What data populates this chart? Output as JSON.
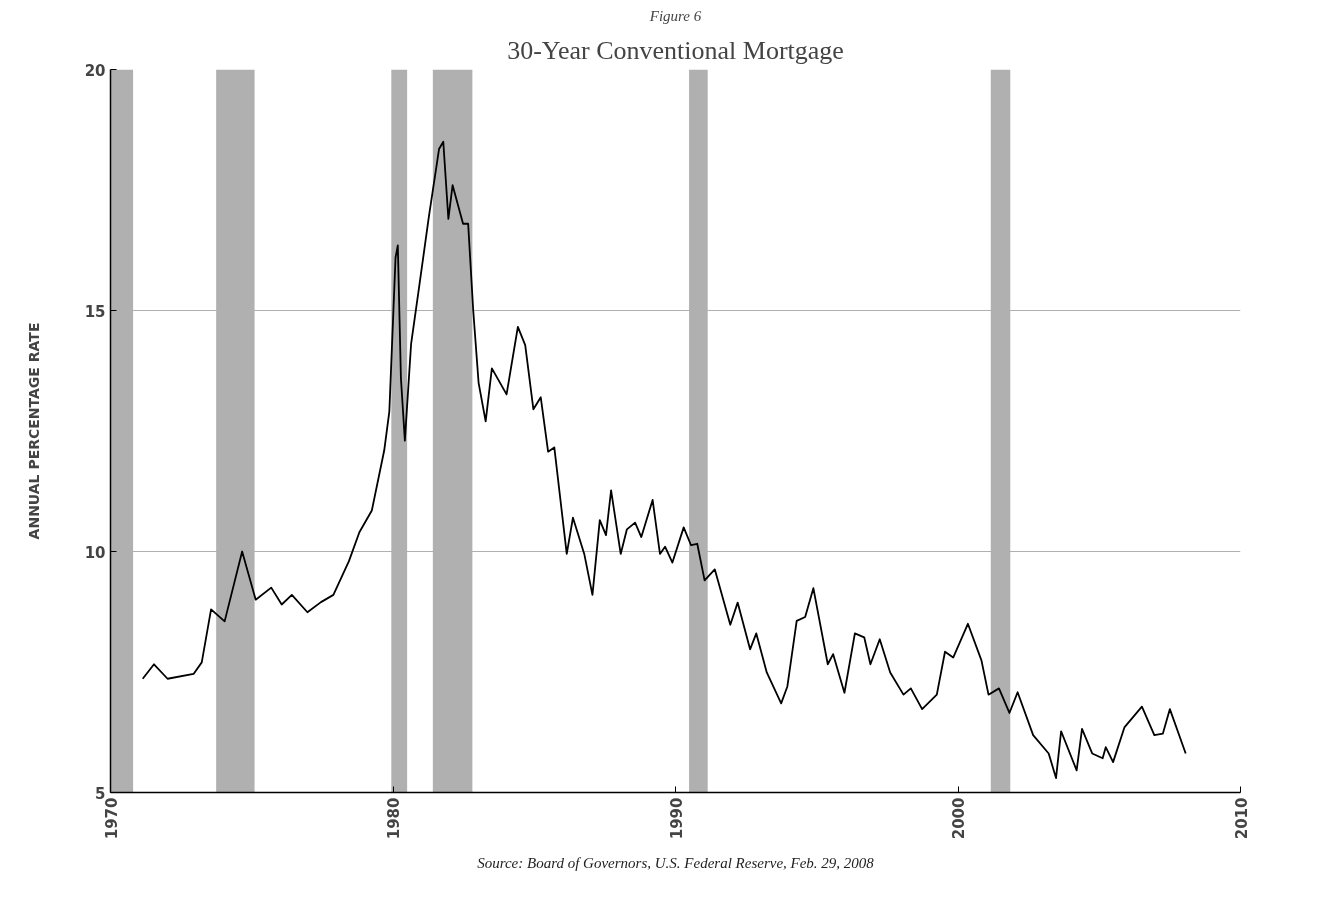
{
  "chart_data": {
    "type": "line",
    "subtitle": "Figure 6",
    "title": "30-Year Conventional Mortgage",
    "ylabel": "ANNUAL PERCENTAGE RATE",
    "annotations": [
      "Source: Board of Governors, U.S. Federal Reserve, Feb. 29, 2008"
    ],
    "xlim": [
      1970,
      2010
    ],
    "xticks": [
      1970,
      1980,
      1990,
      2000,
      2010
    ],
    "ylim": [
      5,
      20
    ],
    "yticks": [
      5,
      10,
      15,
      20
    ],
    "grid": "y",
    "marker": "none",
    "line_style": "solid",
    "bands": [
      {
        "axis": "x",
        "from": 1970,
        "to": 1970.8,
        "color": "#b0b0b0"
      },
      {
        "axis": "x",
        "from": 1973.74,
        "to": 1975.1,
        "color": "#b0b0b0"
      },
      {
        "axis": "x",
        "from": 1979.94,
        "to": 1980.5,
        "color": "#b0b0b0"
      },
      {
        "axis": "x",
        "from": 1981.41,
        "to": 1982.81,
        "color": "#b0b0b0"
      },
      {
        "axis": "x",
        "from": 1990.48,
        "to": 1991.14,
        "color": "#b0b0b0"
      },
      {
        "axis": "x",
        "from": 2001.16,
        "to": 2001.85,
        "color": "#b0b0b0"
      }
    ],
    "series": [
      {
        "color": "#000000",
        "x": [
          1971.14,
          1971.54,
          1972.02,
          1972.94,
          1973.23,
          1973.56,
          1974.04,
          1974.66,
          1975.14,
          1975.69,
          1976.06,
          1976.42,
          1976.97,
          1977.45,
          1977.89,
          1978.44,
          1978.81,
          1979.25,
          1979.69,
          1979.87,
          1980.09,
          1980.17,
          1980.28,
          1980.42,
          1980.64,
          1980.94,
          1981.27,
          1981.63,
          1981.78,
          1981.96,
          1982.11,
          1982.48,
          1982.66,
          1982.84,
          1983.03,
          1983.28,
          1983.5,
          1984.02,
          1984.42,
          1984.68,
          1984.97,
          1985.23,
          1985.49,
          1985.71,
          1986.15,
          1986.37,
          1986.77,
          1987.06,
          1987.32,
          1987.54,
          1987.72,
          1988.06,
          1988.28,
          1988.57,
          1988.79,
          1989.19,
          1989.45,
          1989.63,
          1989.89,
          1990.29,
          1990.55,
          1990.77,
          1991.03,
          1991.39,
          1991.94,
          1992.2,
          1992.64,
          1992.86,
          1993.23,
          1993.74,
          1993.96,
          1994.29,
          1994.59,
          1994.88,
          1995.39,
          1995.58,
          1995.98,
          1996.35,
          1996.68,
          1996.9,
          1997.23,
          1997.6,
          1998.07,
          1998.33,
          1998.73,
          1999.25,
          1999.54,
          1999.83,
          2000.35,
          2000.83,
          2001.08,
          2001.45,
          2001.82,
          2002.11,
          2002.66,
          2003.21,
          2003.47,
          2003.65,
          2004.2,
          2004.39,
          2004.75,
          2005.12,
          2005.23,
          2005.49,
          2005.89,
          2006.51,
          2006.95,
          2007.25,
          2007.5,
          2008.06
        ],
        "values": [
          7.36,
          7.66,
          7.36,
          7.46,
          7.7,
          8.8,
          8.55,
          10.0,
          9.0,
          9.25,
          8.9,
          9.1,
          8.74,
          8.95,
          9.1,
          9.8,
          10.4,
          10.85,
          12.1,
          12.9,
          16.1,
          16.35,
          13.6,
          12.3,
          14.3,
          15.55,
          16.95,
          18.35,
          18.5,
          16.9,
          17.6,
          16.8,
          16.8,
          15.0,
          13.5,
          12.7,
          13.8,
          13.26,
          14.66,
          14.28,
          12.95,
          13.2,
          12.07,
          12.16,
          9.95,
          10.7,
          9.95,
          9.1,
          10.65,
          10.34,
          11.27,
          9.95,
          10.46,
          10.6,
          10.3,
          11.07,
          9.95,
          10.1,
          9.77,
          10.5,
          10.13,
          10.16,
          9.4,
          9.63,
          8.48,
          8.94,
          7.97,
          8.3,
          7.49,
          6.85,
          7.2,
          8.56,
          8.64,
          9.24,
          7.66,
          7.87,
          7.07,
          8.3,
          8.22,
          7.66,
          8.18,
          7.49,
          7.03,
          7.16,
          6.73,
          7.03,
          7.92,
          7.8,
          8.5,
          7.74,
          7.03,
          7.16,
          6.65,
          7.08,
          6.19,
          5.81,
          5.3,
          6.27,
          5.46,
          6.32,
          5.81,
          5.71,
          5.94,
          5.63,
          6.35,
          6.78,
          6.19,
          6.22,
          6.73,
          5.81
        ]
      }
    ]
  }
}
